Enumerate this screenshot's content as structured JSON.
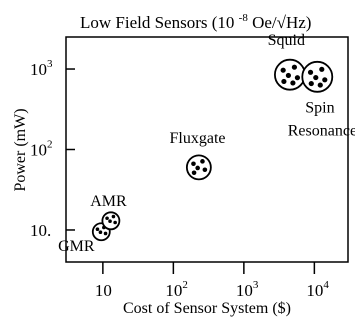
{
  "chart_data": {
    "type": "scatter",
    "title": "Low Field Sensors (10",
    "title_exponent": "-8",
    "title_units": "Oe/√Hz)",
    "xlabel": "Cost of Sensor System ($)",
    "ylabel": "Power (mW)",
    "x_scale": "log",
    "y_scale": "log",
    "xlim": [
      3,
      30000
    ],
    "ylim": [
      4,
      2500
    ],
    "x_ticks": [
      {
        "value": 10,
        "label": "10"
      },
      {
        "value": 100,
        "label": "10",
        "exp": "2"
      },
      {
        "value": 1000,
        "label": "10",
        "exp": "3"
      },
      {
        "value": 10000,
        "label": "10",
        "exp": "4"
      }
    ],
    "y_ticks": [
      {
        "value": 10,
        "label": "10."
      },
      {
        "value": 100,
        "label": "10",
        "exp": "2"
      },
      {
        "value": 1000,
        "label": "10",
        "exp": "3"
      }
    ],
    "points": [
      {
        "name": "GMR",
        "x": 9.5,
        "y": 9.5
      },
      {
        "name": "AMR",
        "x": 13,
        "y": 13
      },
      {
        "name": "Fluxgate",
        "x": 230,
        "y": 60
      },
      {
        "name": "Squid",
        "x": 4500,
        "y": 850
      },
      {
        "name": "Spin Resonance",
        "x": 11000,
        "y": 800
      }
    ],
    "labels": [
      {
        "text": "GMR",
        "x": 4.2,
        "y": 5.5
      },
      {
        "text": "AMR",
        "x": 12,
        "y": 20
      },
      {
        "text": "Fluxgate",
        "x": 220,
        "y": 120
      },
      {
        "text": "Squid",
        "x": 4000,
        "y": 2000
      },
      {
        "text": "Spin",
        "x": 12000,
        "y": 290
      },
      {
        "text": "Resonance",
        "x": 13000,
        "y": 150
      }
    ]
  }
}
